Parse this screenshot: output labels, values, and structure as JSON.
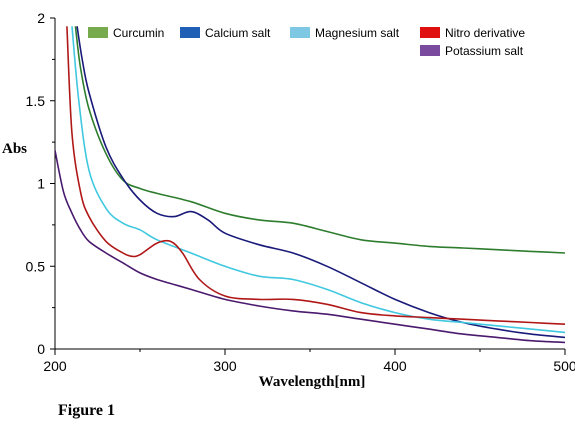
{
  "chart_data": {
    "type": "line",
    "title": "",
    "xlabel": "Wavelength[nm]",
    "ylabel": "Abs",
    "xlim": [
      200,
      500
    ],
    "ylim": [
      0,
      2
    ],
    "xticks": [
      200,
      300,
      400,
      500
    ],
    "yticks": [
      0,
      0.5,
      1,
      1.5,
      2
    ],
    "ytick_labels": [
      "0",
      "0.5",
      "1",
      "1.5",
      "2"
    ],
    "grid": false,
    "legend_position": "top-right",
    "caption": "Figure 1",
    "series": [
      {
        "name": "Curcumin",
        "legend_color": "#77a94d",
        "color": "#2e7d2e",
        "x": [
          212,
          215,
          220,
          230,
          240,
          250,
          260,
          280,
          300,
          320,
          340,
          360,
          380,
          400,
          420,
          440,
          460,
          480,
          500
        ],
        "y": [
          1.95,
          1.7,
          1.45,
          1.18,
          1.02,
          0.97,
          0.94,
          0.89,
          0.82,
          0.78,
          0.76,
          0.71,
          0.66,
          0.64,
          0.62,
          0.61,
          0.6,
          0.59,
          0.58
        ]
      },
      {
        "name": "Calcium salt",
        "legend_color": "#1f5fb5",
        "color": "#1a1a7a",
        "x": [
          213,
          216,
          220,
          230,
          240,
          250,
          260,
          270,
          280,
          290,
          300,
          320,
          340,
          360,
          380,
          400,
          420,
          440,
          460,
          480,
          500
        ],
        "y": [
          1.95,
          1.75,
          1.55,
          1.22,
          1.03,
          0.9,
          0.82,
          0.8,
          0.83,
          0.78,
          0.7,
          0.63,
          0.58,
          0.5,
          0.4,
          0.3,
          0.22,
          0.16,
          0.12,
          0.09,
          0.07
        ]
      },
      {
        "name": "Magnesium salt",
        "legend_color": "#7ec8e3",
        "color": "#40c8e0",
        "x": [
          210,
          214,
          220,
          230,
          240,
          250,
          260,
          280,
          300,
          320,
          340,
          360,
          380,
          400,
          420,
          440,
          460,
          480,
          500
        ],
        "y": [
          1.95,
          1.5,
          1.08,
          0.85,
          0.76,
          0.72,
          0.66,
          0.58,
          0.5,
          0.44,
          0.42,
          0.36,
          0.28,
          0.22,
          0.18,
          0.16,
          0.14,
          0.12,
          0.1
        ]
      },
      {
        "name": "Nitro derivative",
        "legend_color": "#e01010",
        "color": "#b01818",
        "x": [
          207,
          210,
          215,
          220,
          230,
          240,
          245,
          250,
          260,
          268,
          275,
          285,
          300,
          320,
          340,
          360,
          380,
          400,
          420,
          440,
          460,
          480,
          500
        ],
        "y": [
          1.95,
          1.3,
          0.95,
          0.8,
          0.65,
          0.58,
          0.56,
          0.57,
          0.64,
          0.65,
          0.58,
          0.42,
          0.32,
          0.3,
          0.3,
          0.27,
          0.22,
          0.2,
          0.19,
          0.18,
          0.17,
          0.16,
          0.15
        ]
      },
      {
        "name": "Potassium salt",
        "legend_color": "#7a4a9e",
        "color": "#4a1a6e",
        "x": [
          200,
          205,
          210,
          215,
          220,
          230,
          240,
          250,
          260,
          270,
          280,
          300,
          320,
          340,
          360,
          380,
          400,
          420,
          440,
          460,
          480,
          500
        ],
        "y": [
          1.2,
          0.95,
          0.82,
          0.72,
          0.65,
          0.58,
          0.52,
          0.46,
          0.42,
          0.39,
          0.36,
          0.3,
          0.26,
          0.23,
          0.21,
          0.18,
          0.15,
          0.12,
          0.09,
          0.07,
          0.05,
          0.04
        ]
      }
    ]
  }
}
